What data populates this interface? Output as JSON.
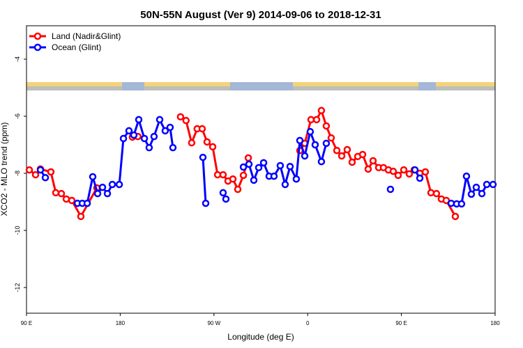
{
  "chart_data": {
    "type": "line",
    "title": "50N-55N August (Ver 9)   2014-09-06 to 2018-12-31",
    "xlabel": "Longitude (deg E)",
    "ylabel": "XCO2 - MLO trend (ppm)",
    "xlim": [
      90,
      540
    ],
    "ylim": [
      -12.9,
      -2.83
    ],
    "xticks": [
      {
        "value": 90,
        "label": "90 E"
      },
      180,
      {
        "value": 270,
        "label": "90 W"
      },
      {
        "value": 360,
        "label": "0"
      },
      {
        "value": 450,
        "label": "90 E"
      },
      {
        "value": 540,
        "label": "180"
      }
    ],
    "yticks": [
      -12,
      -10,
      -8,
      -6,
      -4
    ],
    "legend": "top-left",
    "series": [
      {
        "name": "Land (Nadir&Glint)",
        "color": "#ff0000",
        "x": [
          92.7,
          98.7,
          103.4,
          113.4,
          118.1,
          123.5,
          128.2,
          133.5,
          142.2,
          157.6,
          null,
          191.7,
          197.0,
          null,
          237.9,
          243.2,
          248.6,
          253.9,
          258.7,
          263.4,
          268.8,
          273.5,
          278.8,
          283.5,
          288.2,
          292.9,
          298.3,
          303.0,
          null,
          352.5,
          357.2,
          363.2,
          368.6,
          373.2,
          377.9,
          382.6,
          388.0,
          392.7,
          398.0,
          402.7,
          408.1,
          412.8,
          418.1,
          422.8,
          428.2,
          432.8,
          437.5,
          442.2,
          446.9,
          452.3,
          457.6,
          462.3,
          467.7,
          473.0,
          478.4,
          483.7,
          488.4,
          493.1,
          501.8
        ],
        "values": [
          -7.88,
          -8.05,
          -7.85,
          -7.95,
          -8.68,
          -8.71,
          -8.9,
          -8.95,
          -9.51,
          -8.51,
          null,
          -6.73,
          -6.71,
          null,
          -6.02,
          -6.15,
          -6.93,
          -6.44,
          -6.44,
          -6.9,
          -7.07,
          -8.05,
          -8.05,
          -8.27,
          -8.2,
          -8.56,
          -8.07,
          -7.46,
          null,
          -7.2,
          -6.95,
          -6.12,
          -6.12,
          -5.8,
          -6.34,
          -6.76,
          -7.2,
          -7.39,
          -7.17,
          -7.61,
          -7.41,
          -7.34,
          -7.85,
          -7.56,
          -7.8,
          -7.8,
          -7.88,
          -7.93,
          -8.07,
          -7.88,
          -8.02,
          -7.88,
          -8.0,
          -7.95,
          -8.68,
          -8.71,
          -8.9,
          -8.95,
          -9.51
        ]
      },
      {
        "name": "Ocean (Glint)",
        "color": "#0000ff",
        "x": [
          103.4,
          108.1,
          null,
          138.9,
          143.6,
          148.3,
          153.6,
          158.3,
          163.0,
          167.7,
          172.4,
          179.1,
          183.1,
          188.4,
          193.1,
          197.8,
          203.2,
          207.8,
          212.5,
          217.9,
          223.2,
          227.9,
          230.6,
          null,
          259.4,
          262.1,
          null,
          278.8,
          281.5,
          null,
          298.3,
          303.6,
          308.3,
          313.0,
          317.7,
          323.0,
          327.7,
          333.7,
          338.4,
          343.1,
          349.1,
          352.5,
          357.2,
          362.5,
          367.2,
          373.2,
          377.9,
          null,
          439.5,
          null,
          463.0,
          467.7,
          null,
          497.8,
          503.1,
          507.8,
          512.5,
          517.2,
          521.9,
          527.3,
          532.0,
          538.0
        ],
        "values": [
          -7.88,
          -8.15,
          null,
          -9.05,
          -9.05,
          -9.05,
          -8.12,
          -8.71,
          -8.49,
          -8.71,
          -8.39,
          -8.39,
          -6.78,
          -6.51,
          -6.66,
          -6.12,
          -6.78,
          -7.1,
          -6.71,
          -6.12,
          -6.51,
          -6.39,
          -7.1,
          null,
          -7.44,
          -9.05,
          null,
          -8.68,
          -8.9,
          null,
          -7.78,
          -7.68,
          -8.24,
          -7.8,
          -7.63,
          -8.1,
          -8.1,
          -7.73,
          -8.39,
          -7.76,
          -8.2,
          -6.85,
          -7.39,
          -6.54,
          -7.0,
          -7.59,
          -6.95,
          null,
          -8.56,
          null,
          -7.88,
          -8.17,
          null,
          -9.05,
          -9.07,
          -9.07,
          -8.1,
          -8.73,
          -8.49,
          -8.71,
          -8.39,
          -8.39
        ]
      }
    ]
  }
}
